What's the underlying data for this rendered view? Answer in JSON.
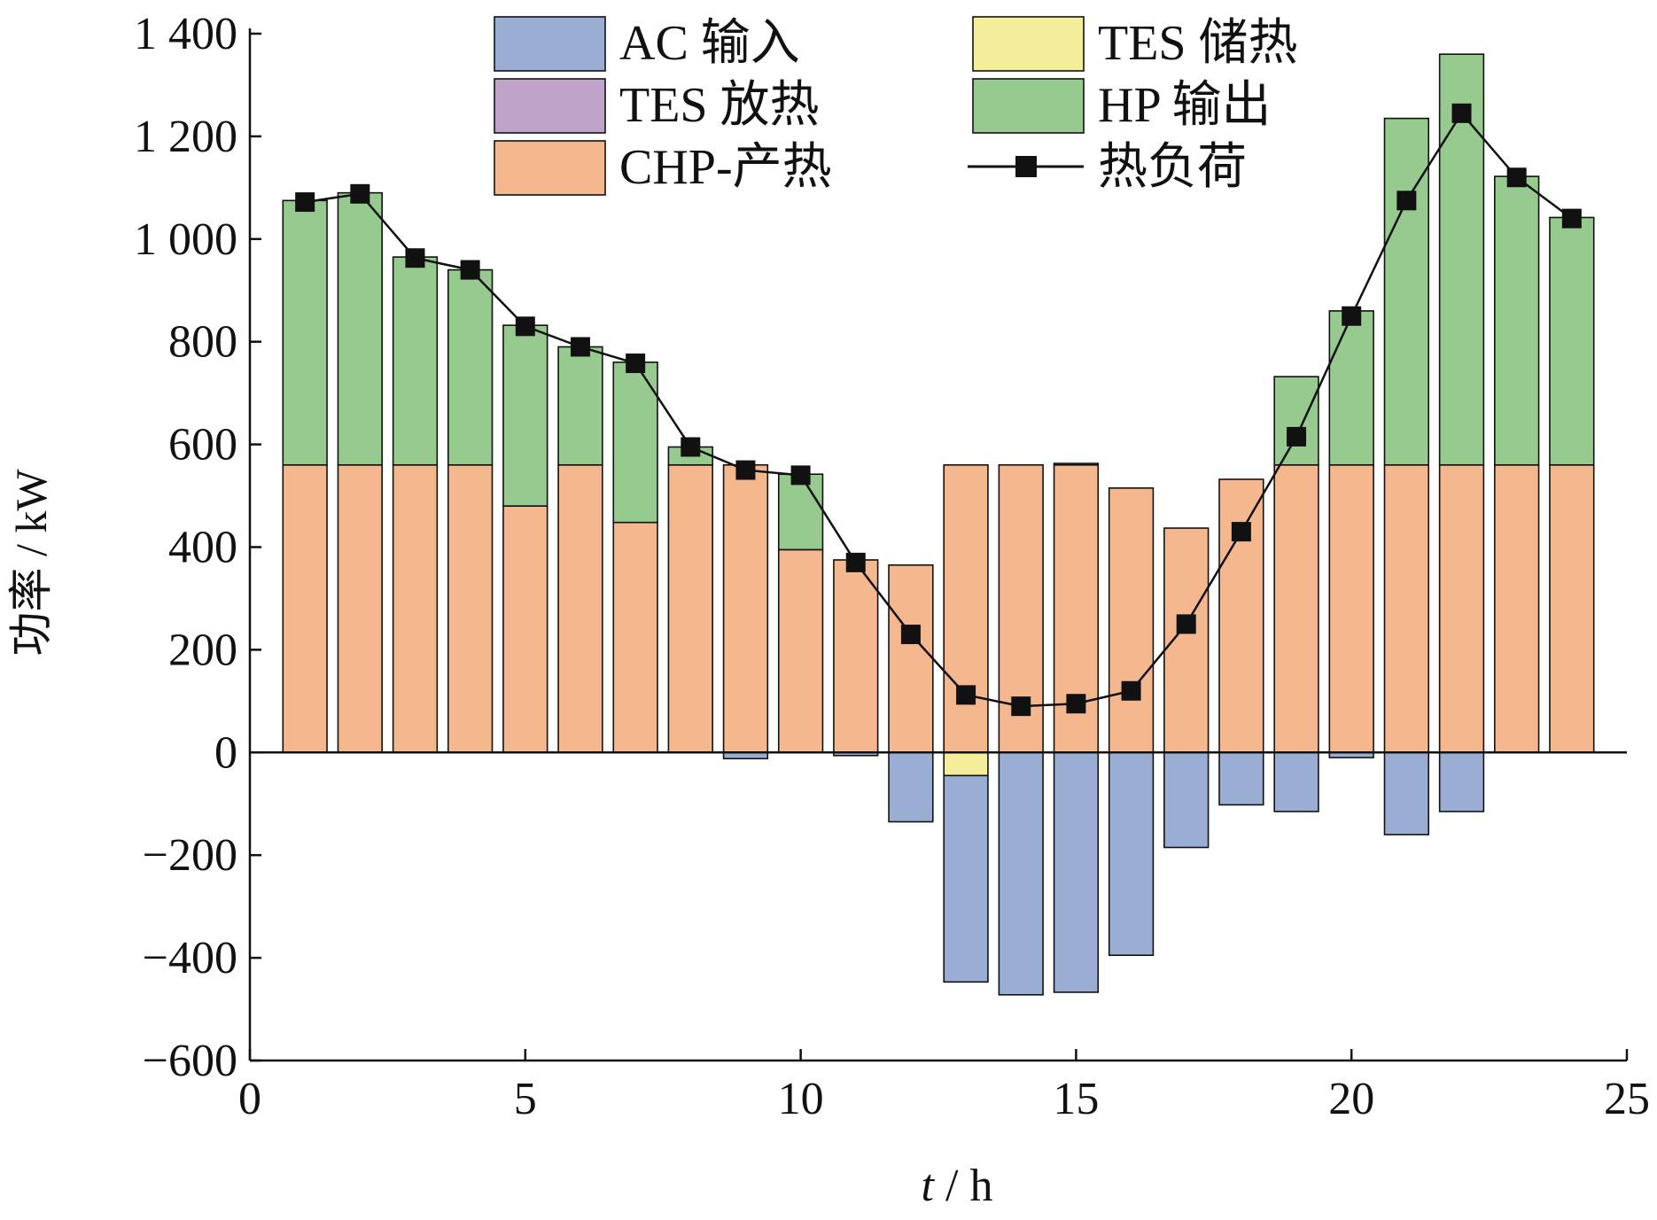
{
  "chart_data": {
    "type": "bar",
    "stacked": true,
    "xlabel_italic": "t",
    "xlabel_rest": " / h",
    "ylabel": "功率 / kW",
    "xlim": [
      0,
      25
    ],
    "ylim": [
      -600,
      1400
    ],
    "xticks": [
      0,
      5,
      10,
      15,
      20,
      25
    ],
    "xtick_labels": [
      "0",
      "5",
      "10",
      "15",
      "20",
      "25"
    ],
    "yticks": [
      -600,
      -400,
      -200,
      0,
      200,
      400,
      600,
      800,
      1000,
      1200,
      1400
    ],
    "ytick_labels": [
      "−600",
      "−400",
      "−200",
      "0",
      "200",
      "400",
      "600",
      "800",
      "1 000",
      "1 200",
      "1 400"
    ],
    "hours": [
      1,
      2,
      3,
      4,
      5,
      6,
      7,
      8,
      9,
      10,
      11,
      12,
      13,
      14,
      15,
      16,
      17,
      18,
      19,
      20,
      21,
      22,
      23,
      24
    ],
    "series": [
      {
        "name": "CHP-产热",
        "color": "#f5b88e",
        "stack": "pos",
        "values": [
          560,
          560,
          560,
          560,
          480,
          560,
          448,
          560,
          560,
          395,
          375,
          365,
          560,
          560,
          560,
          515,
          437,
          532,
          560,
          560,
          560,
          560,
          560,
          560
        ]
      },
      {
        "name": "HP 输出",
        "color": "#96ca8f",
        "stack": "pos",
        "values": [
          515,
          530,
          405,
          380,
          352,
          230,
          312,
          35,
          0,
          147,
          0,
          0,
          0,
          0,
          3,
          0,
          0,
          0,
          172,
          300,
          675,
          800,
          562,
          482
        ]
      },
      {
        "name": "TES 放热",
        "color": "#bfa3c8",
        "stack": "pos",
        "values": [
          0,
          0,
          0,
          0,
          0,
          0,
          0,
          0,
          0,
          0,
          0,
          0,
          0,
          0,
          0,
          0,
          0,
          0,
          0,
          0,
          0,
          0,
          0,
          0
        ]
      },
      {
        "name": "TES 储热",
        "color": "#f4ee9b",
        "stack": "neg",
        "values": [
          0,
          0,
          0,
          0,
          0,
          0,
          0,
          0,
          0,
          0,
          0,
          0,
          -45,
          0,
          0,
          0,
          0,
          0,
          0,
          0,
          0,
          0,
          0,
          0
        ]
      },
      {
        "name": "AC 输入",
        "color": "#9aaed3",
        "stack": "neg",
        "values": [
          0,
          0,
          0,
          0,
          0,
          0,
          0,
          0,
          -12,
          0,
          -6,
          -135,
          -402,
          -472,
          -467,
          -395,
          -185,
          -102,
          -115,
          -10,
          -160,
          -115,
          0,
          0
        ]
      }
    ],
    "line": {
      "name": "热负荷",
      "color": "#111111",
      "values": [
        1072,
        1088,
        963,
        940,
        830,
        790,
        758,
        595,
        550,
        540,
        370,
        230,
        112,
        90,
        95,
        120,
        250,
        430,
        615,
        850,
        1075,
        1245,
        1120,
        1040
      ]
    },
    "legend": [
      {
        "name": "AC 输入",
        "kind": "box",
        "color": "#9aaed3"
      },
      {
        "name": "TES 储热",
        "kind": "box",
        "color": "#f4ee9b"
      },
      {
        "name": "TES 放热",
        "kind": "box",
        "color": "#bfa3c8"
      },
      {
        "name": "HP 输出",
        "kind": "box",
        "color": "#96ca8f"
      },
      {
        "name": "CHP-产热",
        "kind": "box",
        "color": "#f5b88e"
      },
      {
        "name": "热负荷",
        "kind": "line",
        "color": "#111111"
      }
    ],
    "legend_position": "top-center",
    "grid": false
  }
}
